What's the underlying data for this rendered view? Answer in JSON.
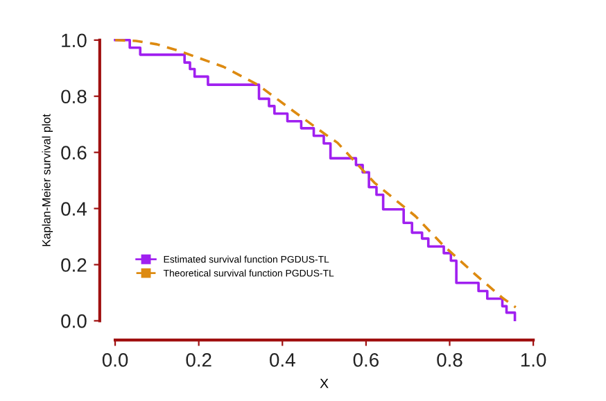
{
  "chart_data": {
    "type": "line",
    "xlabel": "X",
    "ylabel": "Kaplan-Meier survival plot",
    "xlim": [
      0,
      1
    ],
    "ylim": [
      0,
      1
    ],
    "xticks": [
      {
        "value": 0,
        "label": "0.0"
      },
      0.2,
      0.4,
      0.6,
      0.8,
      {
        "value": 1,
        "label": "1.0"
      }
    ],
    "yticks": [
      {
        "value": 0,
        "label": "0.0"
      },
      0.2,
      0.4,
      0.6,
      0.8,
      {
        "value": 1,
        "label": "1.0"
      }
    ],
    "grid": false,
    "legend": "bottom left",
    "marker": "none",
    "series": [
      {
        "name": "Estimated survival function PGDUS-TL",
        "type": "step",
        "color": "#a020f0",
        "line_style": "solid",
        "x": [
          0.0,
          0.035,
          0.06,
          0.166,
          0.179,
          0.19,
          0.222,
          0.344,
          0.368,
          0.381,
          0.412,
          0.445,
          0.475,
          0.499,
          0.515,
          0.576,
          0.592,
          0.607,
          0.625,
          0.641,
          0.69,
          0.71,
          0.734,
          0.749,
          0.786,
          0.803,
          0.816,
          0.869,
          0.89,
          0.926,
          0.936,
          0.956
        ],
        "values": [
          1.0,
          0.973,
          0.948,
          0.92,
          0.897,
          0.87,
          0.841,
          0.791,
          0.765,
          0.738,
          0.711,
          0.686,
          0.659,
          0.632,
          0.579,
          0.555,
          0.529,
          0.476,
          0.449,
          0.397,
          0.349,
          0.314,
          0.293,
          0.265,
          0.241,
          0.214,
          0.135,
          0.106,
          0.079,
          0.052,
          0.029,
          0.003
        ]
      },
      {
        "name": "Theoretical survival function PGDUS-TL",
        "color": "#dd8a10",
        "line_style": "dashed",
        "x": [
          0.0,
          0.05,
          0.1,
          0.15,
          0.259,
          0.342,
          0.42,
          0.5,
          0.532,
          0.62,
          0.718,
          0.784,
          0.86,
          0.926,
          0.958
        ],
        "values": [
          1.0,
          0.997,
          0.985,
          0.963,
          0.905,
          0.84,
          0.754,
          0.667,
          0.634,
          0.492,
          0.373,
          0.27,
          0.167,
          0.082,
          0.048
        ]
      }
    ]
  }
}
